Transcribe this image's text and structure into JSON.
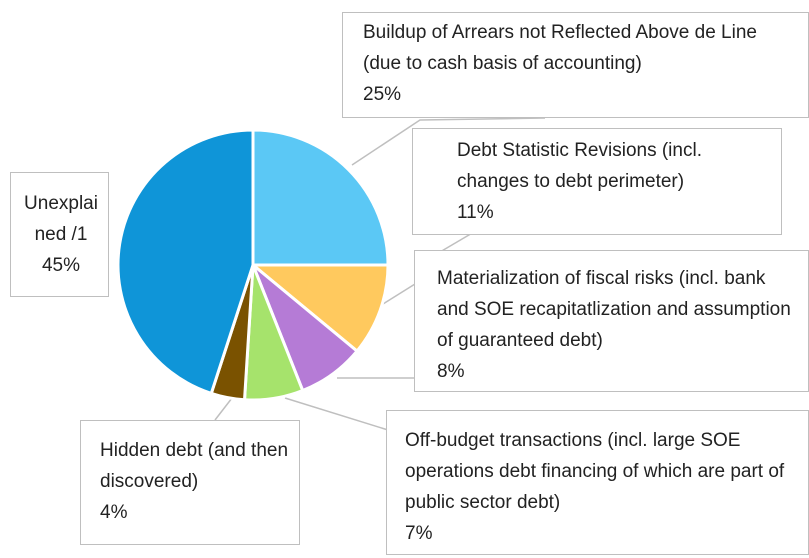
{
  "chart_data": {
    "type": "pie",
    "categories": [
      "Buildup of Arrears not Reflected Above de Line (due to cash basis of accounting)",
      "Debt Statistic Revisions (incl. changes to debt perimeter)",
      "Materialization of fiscal risks (incl. bank and SOE recapitatlization and assumption of guaranteed debt)",
      "Off-budget transactions (incl. large SOE operations debt financing of which are part of public sector debt)",
      "Hidden debt (and then discovered)",
      "Unexplained /1"
    ],
    "values": [
      25,
      11,
      8,
      7,
      4,
      45
    ],
    "value_labels": [
      "25%",
      "11%",
      "8%",
      "7%",
      "4%",
      "45%"
    ],
    "colors": [
      "#5bc8f5",
      "#ffc95e",
      "#b57bd6",
      "#a6e36c",
      "#7a5200",
      "#0f95d8"
    ]
  }
}
